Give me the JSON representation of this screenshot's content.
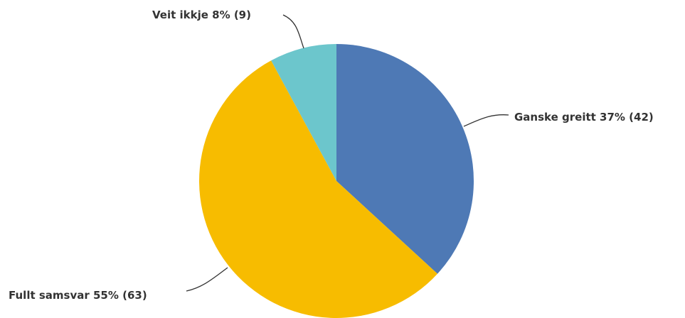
{
  "chart_data": {
    "type": "pie",
    "slices": [
      {
        "label": "Ganske greitt 37% (42)",
        "category": "Ganske greitt",
        "percent": 37,
        "count": 42,
        "color": "#4e79b5"
      },
      {
        "label": "Fullt samsvar 55% (63)",
        "category": "Fullt samsvar",
        "percent": 55,
        "count": 63,
        "color": "#f7bc00"
      },
      {
        "label": "Veit ikkje 8% (9)",
        "category": "Veit ikkje",
        "percent": 8,
        "count": 9,
        "color": "#6cc6cc"
      }
    ],
    "start_angle": "12 o'clock",
    "direction": "clockwise",
    "legend": "none"
  }
}
